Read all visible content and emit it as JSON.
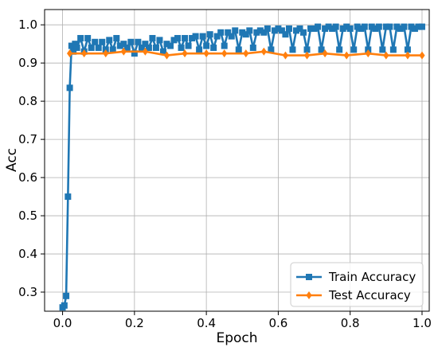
{
  "chart_data": {
    "type": "line",
    "xlabel": "Epoch",
    "ylabel": "Acc",
    "xlim": [
      -0.05,
      1.02
    ],
    "ylim": [
      0.25,
      1.04
    ],
    "xticks": [
      0.0,
      0.2,
      0.4,
      0.6,
      0.8,
      1.0
    ],
    "xtick_labels": [
      "0.0",
      "0.2",
      "0.4",
      "0.6",
      "0.8",
      "1.0"
    ],
    "yticks": [
      0.3,
      0.4,
      0.5,
      0.6,
      0.7,
      0.8,
      0.9,
      1.0
    ],
    "ytick_labels": [
      "0.3",
      "0.4",
      "0.5",
      "0.6",
      "0.7",
      "0.8",
      "0.9",
      "1.0"
    ],
    "grid": true,
    "legend_position": "bottom-right",
    "series": [
      {
        "name": "Train Accuracy",
        "color": "#1f77b4",
        "marker": "square",
        "x": [
          0.0,
          0.005,
          0.01,
          0.015,
          0.02,
          0.025,
          0.03,
          0.035,
          0.04,
          0.05,
          0.06,
          0.07,
          0.08,
          0.09,
          0.1,
          0.11,
          0.12,
          0.13,
          0.14,
          0.15,
          0.16,
          0.17,
          0.18,
          0.19,
          0.2,
          0.21,
          0.22,
          0.23,
          0.24,
          0.25,
          0.26,
          0.27,
          0.28,
          0.29,
          0.3,
          0.31,
          0.32,
          0.33,
          0.34,
          0.35,
          0.36,
          0.37,
          0.38,
          0.39,
          0.4,
          0.41,
          0.42,
          0.43,
          0.44,
          0.45,
          0.46,
          0.47,
          0.48,
          0.49,
          0.5,
          0.51,
          0.52,
          0.53,
          0.54,
          0.55,
          0.56,
          0.57,
          0.58,
          0.59,
          0.6,
          0.61,
          0.62,
          0.63,
          0.64,
          0.65,
          0.66,
          0.67,
          0.68,
          0.69,
          0.7,
          0.71,
          0.72,
          0.73,
          0.74,
          0.75,
          0.76,
          0.77,
          0.78,
          0.79,
          0.8,
          0.81,
          0.82,
          0.83,
          0.84,
          0.85,
          0.86,
          0.87,
          0.88,
          0.89,
          0.9,
          0.91,
          0.92,
          0.93,
          0.94,
          0.95,
          0.96,
          0.97,
          0.98,
          0.99,
          1.0
        ],
        "y": [
          0.26,
          0.265,
          0.29,
          0.55,
          0.835,
          0.945,
          0.93,
          0.95,
          0.94,
          0.965,
          0.93,
          0.965,
          0.94,
          0.955,
          0.94,
          0.955,
          0.935,
          0.96,
          0.935,
          0.965,
          0.945,
          0.95,
          0.94,
          0.955,
          0.925,
          0.955,
          0.94,
          0.95,
          0.94,
          0.965,
          0.94,
          0.96,
          0.93,
          0.95,
          0.945,
          0.96,
          0.965,
          0.94,
          0.965,
          0.945,
          0.965,
          0.97,
          0.935,
          0.97,
          0.945,
          0.975,
          0.94,
          0.97,
          0.98,
          0.945,
          0.98,
          0.97,
          0.985,
          0.935,
          0.98,
          0.975,
          0.985,
          0.94,
          0.98,
          0.985,
          0.98,
          0.99,
          0.935,
          0.985,
          0.99,
          0.985,
          0.975,
          0.99,
          0.935,
          0.985,
          0.99,
          0.98,
          0.935,
          0.99,
          0.99,
          0.995,
          0.935,
          0.99,
          0.995,
          0.99,
          0.995,
          0.935,
          0.99,
          0.995,
          0.99,
          0.935,
          0.995,
          0.99,
          0.995,
          0.935,
          0.995,
          0.99,
          0.995,
          0.935,
          0.995,
          0.995,
          0.935,
          0.995,
          0.99,
          0.995,
          0.935,
          0.995,
          0.99,
          0.995,
          0.995
        ]
      },
      {
        "name": "Test Accuracy",
        "color": "#ff7f0e",
        "marker": "diamond",
        "x": [
          0.02,
          0.06,
          0.12,
          0.17,
          0.23,
          0.29,
          0.34,
          0.4,
          0.45,
          0.51,
          0.56,
          0.62,
          0.68,
          0.73,
          0.79,
          0.85,
          0.9,
          0.96,
          1.0
        ],
        "y": [
          0.925,
          0.925,
          0.925,
          0.93,
          0.93,
          0.92,
          0.925,
          0.925,
          0.925,
          0.925,
          0.93,
          0.92,
          0.92,
          0.925,
          0.92,
          0.925,
          0.92,
          0.92,
          0.92
        ]
      }
    ]
  }
}
